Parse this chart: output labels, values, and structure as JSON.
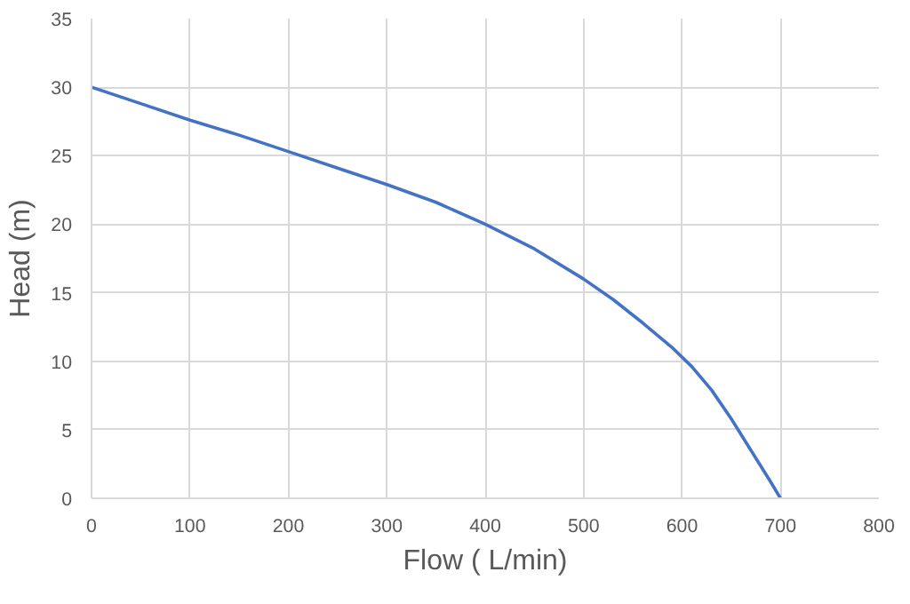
{
  "chart_data": {
    "type": "line",
    "xlabel": "Flow ( L/min)",
    "ylabel": "Head (m)",
    "series": [
      {
        "color": "#4472c4",
        "x": [
          0,
          50,
          100,
          150,
          200,
          250,
          300,
          350,
          400,
          450,
          500,
          530,
          560,
          590,
          610,
          630,
          650,
          670,
          690,
          700
        ],
        "values": [
          30,
          28.8,
          27.6,
          26.5,
          25.3,
          24.1,
          22.9,
          21.6,
          20,
          18.2,
          16,
          14.5,
          12.8,
          11,
          9.6,
          7.9,
          5.8,
          3.5,
          1.2,
          0
        ]
      }
    ],
    "xlim": [
      0,
      800
    ],
    "xticks": [
      0,
      100,
      200,
      300,
      400,
      500,
      600,
      700,
      800
    ],
    "ylim": [
      0,
      35
    ],
    "yticks": [
      0,
      5,
      10,
      15,
      20,
      25,
      30,
      35
    ],
    "grid": true,
    "marker": "none",
    "line_style": "solid"
  }
}
